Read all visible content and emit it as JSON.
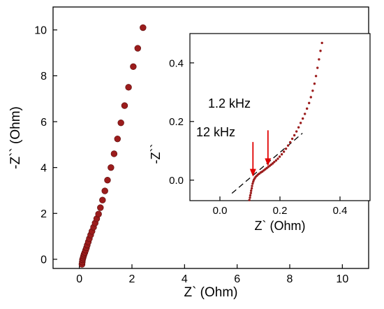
{
  "chart_data": [
    {
      "id": "main",
      "type": "scatter",
      "xlabel": "Z` (Ohm)",
      "ylabel": "-Z`` (Ohm)",
      "xlim": [
        -1,
        11
      ],
      "ylim": [
        -0.4,
        11
      ],
      "xticks": [
        0,
        2,
        4,
        6,
        8,
        10
      ],
      "yticks": [
        0,
        2,
        4,
        6,
        8,
        10
      ],
      "grid": false,
      "marker_color": "#9b1c1c",
      "series": [
        {
          "points": [
            [
              0.1,
              -0.22
            ],
            [
              0.11,
              -0.12
            ],
            [
              0.12,
              -0.02
            ],
            [
              0.14,
              0.06
            ],
            [
              0.16,
              0.14
            ],
            [
              0.18,
              0.22
            ],
            [
              0.21,
              0.3
            ],
            [
              0.24,
              0.4
            ],
            [
              0.27,
              0.5
            ],
            [
              0.3,
              0.62
            ],
            [
              0.34,
              0.76
            ],
            [
              0.38,
              0.9
            ],
            [
              0.43,
              1.06
            ],
            [
              0.48,
              1.22
            ],
            [
              0.54,
              1.4
            ],
            [
              0.6,
              1.58
            ],
            [
              0.66,
              1.77
            ],
            [
              0.73,
              1.97
            ],
            [
              0.8,
              2.25
            ],
            [
              0.88,
              2.58
            ],
            [
              0.97,
              2.98
            ],
            [
              1.07,
              3.45
            ],
            [
              1.2,
              4.0
            ],
            [
              1.32,
              4.6
            ],
            [
              1.45,
              5.25
            ],
            [
              1.58,
              5.95
            ],
            [
              1.72,
              6.7
            ],
            [
              1.87,
              7.5
            ],
            [
              2.05,
              8.4
            ],
            [
              2.22,
              9.2
            ],
            [
              2.42,
              10.1
            ]
          ]
        }
      ]
    },
    {
      "id": "inset",
      "type": "scatter",
      "xlabel": "Z` (Ohm)",
      "ylabel": "-Z``",
      "xlim": [
        -0.1,
        0.5
      ],
      "ylim": [
        -0.07,
        0.5
      ],
      "xticks": [
        0.0,
        0.2,
        0.4
      ],
      "yticks": [
        0.0,
        0.2,
        0.4
      ],
      "xtick_labels": [
        "0.0",
        "0.2",
        "0.4"
      ],
      "ytick_labels": [
        "0.0",
        "0.2",
        "0.4"
      ],
      "grid": false,
      "marker_color": "#9b1c1c",
      "series": [
        {
          "points": [
            [
              0.098,
              -0.068
            ],
            [
              0.1,
              -0.06
            ],
            [
              0.101,
              -0.052
            ],
            [
              0.103,
              -0.044
            ],
            [
              0.104,
              -0.036
            ],
            [
              0.106,
              -0.028
            ],
            [
              0.107,
              -0.02
            ],
            [
              0.109,
              -0.012
            ],
            [
              0.111,
              -0.005
            ],
            [
              0.113,
              0.001
            ],
            [
              0.116,
              0.006
            ],
            [
              0.119,
              0.011
            ],
            [
              0.123,
              0.015
            ],
            [
              0.127,
              0.019
            ],
            [
              0.131,
              0.022
            ],
            [
              0.136,
              0.026
            ],
            [
              0.141,
              0.029
            ],
            [
              0.146,
              0.033
            ],
            [
              0.151,
              0.037
            ],
            [
              0.156,
              0.041
            ],
            [
              0.161,
              0.045
            ],
            [
              0.166,
              0.049
            ],
            [
              0.171,
              0.053
            ],
            [
              0.176,
              0.057
            ],
            [
              0.181,
              0.062
            ],
            [
              0.187,
              0.067
            ],
            [
              0.193,
              0.073
            ],
            [
              0.199,
              0.08
            ],
            [
              0.206,
              0.088
            ],
            [
              0.213,
              0.097
            ],
            [
              0.22,
              0.107
            ],
            [
              0.227,
              0.118
            ],
            [
              0.234,
              0.129
            ],
            [
              0.241,
              0.141
            ],
            [
              0.248,
              0.153
            ],
            [
              0.255,
              0.166
            ],
            [
              0.262,
              0.18
            ],
            [
              0.269,
              0.195
            ],
            [
              0.276,
              0.21
            ],
            [
              0.283,
              0.226
            ],
            [
              0.29,
              0.244
            ],
            [
              0.297,
              0.263
            ],
            [
              0.303,
              0.283
            ],
            [
              0.309,
              0.305
            ],
            [
              0.315,
              0.329
            ],
            [
              0.32,
              0.355
            ],
            [
              0.325,
              0.383
            ],
            [
              0.33,
              0.412
            ],
            [
              0.335,
              0.441
            ],
            [
              0.34,
              0.468
            ]
          ]
        }
      ],
      "fit_line": {
        "x": [
          0.04,
          0.275
        ],
        "y": [
          -0.045,
          0.16
        ],
        "style": "dashed"
      },
      "annotations": [
        {
          "text": "1.2 kHz",
          "arrow_x": 0.16,
          "arrow_tip_y": 0.048,
          "arrow_tail_y": 0.17,
          "arrow_color": "#e00000"
        },
        {
          "text": "12 kHz",
          "arrow_x": 0.11,
          "arrow_tip_y": 0.012,
          "arrow_tail_y": 0.13,
          "arrow_color": "#e00000"
        }
      ]
    }
  ]
}
